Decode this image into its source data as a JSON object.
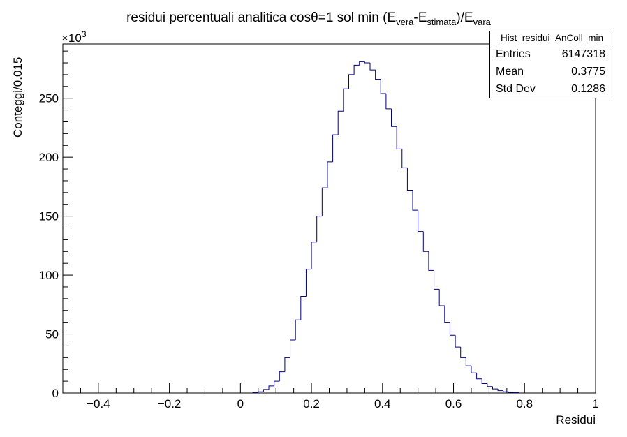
{
  "chart_data": {
    "type": "histogram",
    "title": {
      "prefix": "residui percentuali analitica cos",
      "theta": "θ",
      "mid": "=1 sol min (E",
      "sub1": "vera",
      "dash": "-E",
      "sub2": "stimata",
      "close": ")/E",
      "sub3": "vara"
    },
    "xlabel": "Residui",
    "ylabel": "Conteggi/0.015",
    "y_multiplier": {
      "base": "×10",
      "exp": "3"
    },
    "xlim": [
      -0.5,
      1.0
    ],
    "ylim": [
      0,
      296
    ],
    "x_ticks": [
      -0.4,
      -0.2,
      0,
      0.2,
      0.4,
      0.6,
      0.8,
      1
    ],
    "x_tick_labels": [
      "−0.4",
      "−0.2",
      "0",
      "0.2",
      "0.4",
      "0.6",
      "0.8",
      "1"
    ],
    "y_ticks": [
      0,
      50,
      100,
      150,
      200,
      250
    ],
    "y_tick_labels": [
      "0",
      "50",
      "100",
      "150",
      "200",
      "250"
    ],
    "bin_width": 0.015,
    "bin_start": 0.035,
    "values": [
      0.3,
      1,
      3,
      6,
      10,
      18,
      30,
      45,
      62,
      82,
      105,
      128,
      150,
      174,
      196,
      219,
      239,
      258,
      270,
      278,
      281,
      280,
      274,
      266,
      254,
      241,
      226,
      207,
      191,
      172,
      155,
      137,
      120,
      104,
      88,
      74,
      60,
      49,
      39,
      30,
      23,
      17,
      12,
      8,
      5.5,
      3.5,
      2,
      1,
      0.6,
      0.3
    ],
    "line_color": "#000080",
    "stats": {
      "title": "Hist_residui_AnColl_min",
      "rows": [
        {
          "label": "Entries",
          "value": "6147318"
        },
        {
          "label": "Mean",
          "value": "0.3775"
        },
        {
          "label": "Std Dev",
          "value": "0.1286"
        }
      ]
    }
  }
}
